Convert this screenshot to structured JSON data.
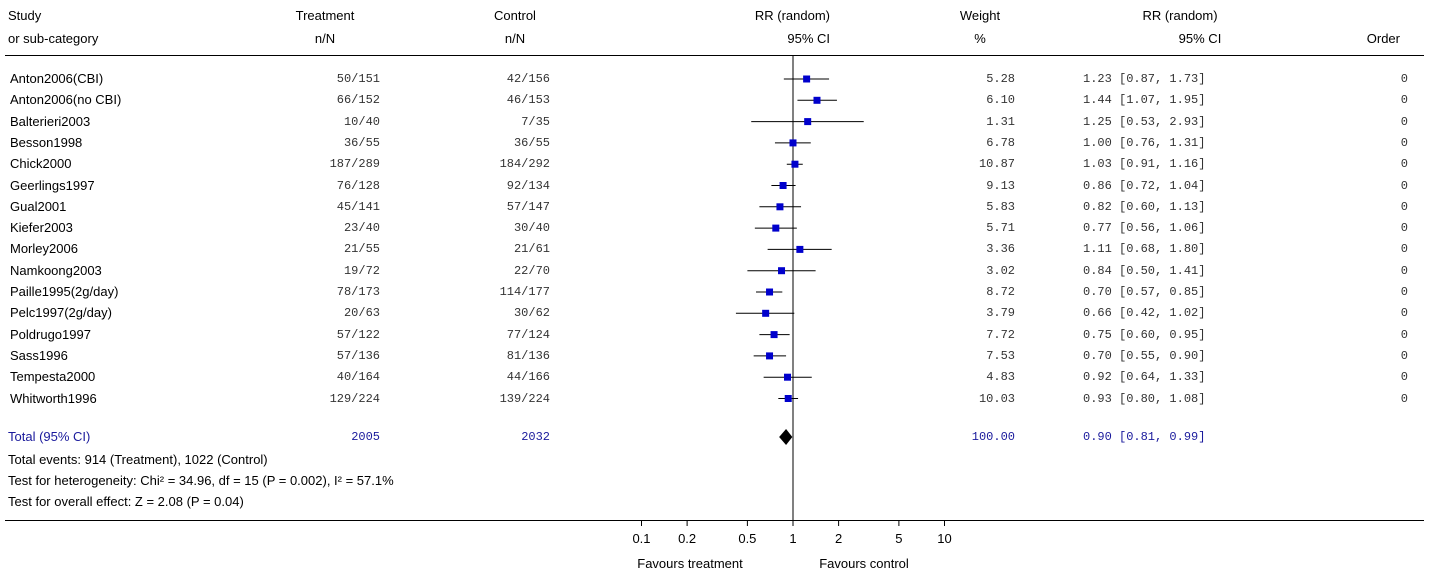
{
  "headers": {
    "study": [
      "Study",
      "or sub-category"
    ],
    "treatment": [
      "Treatment",
      "n/N"
    ],
    "control": [
      "Control",
      "n/N"
    ],
    "rr_plot": [
      "RR (random)",
      "95% CI"
    ],
    "weight": [
      "Weight",
      "%"
    ],
    "rr_text": [
      "RR (random)",
      "95% CI"
    ],
    "order": "Order"
  },
  "studies": [
    {
      "name": "Anton2006(CBI)",
      "treatment": "50/151",
      "control": "42/156",
      "weight": "5.28",
      "ci_text": "1.23 [0.87, 1.73]",
      "order": "0"
    },
    {
      "name": "Anton2006(no CBI)",
      "treatment": "66/152",
      "control": "46/153",
      "weight": "6.10",
      "ci_text": "1.44 [1.07, 1.95]",
      "order": "0"
    },
    {
      "name": "Balterieri2003",
      "treatment": "10/40",
      "control": "7/35",
      "weight": "1.31",
      "ci_text": "1.25 [0.53, 2.93]",
      "order": "0"
    },
    {
      "name": "Besson1998",
      "treatment": "36/55",
      "control": "36/55",
      "weight": "6.78",
      "ci_text": "1.00 [0.76, 1.31]",
      "order": "0"
    },
    {
      "name": "Chick2000",
      "treatment": "187/289",
      "control": "184/292",
      "weight": "10.87",
      "ci_text": "1.03 [0.91, 1.16]",
      "order": "0"
    },
    {
      "name": "Geerlings1997",
      "treatment": "76/128",
      "control": "92/134",
      "weight": "9.13",
      "ci_text": "0.86 [0.72, 1.04]",
      "order": "0"
    },
    {
      "name": "Gual2001",
      "treatment": "45/141",
      "control": "57/147",
      "weight": "5.83",
      "ci_text": "0.82 [0.60, 1.13]",
      "order": "0"
    },
    {
      "name": "Kiefer2003",
      "treatment": "23/40",
      "control": "30/40",
      "weight": "5.71",
      "ci_text": "0.77 [0.56, 1.06]",
      "order": "0"
    },
    {
      "name": "Morley2006",
      "treatment": "21/55",
      "control": "21/61",
      "weight": "3.36",
      "ci_text": "1.11 [0.68, 1.80]",
      "order": "0"
    },
    {
      "name": "Namkoong2003",
      "treatment": "19/72",
      "control": "22/70",
      "weight": "3.02",
      "ci_text": "0.84 [0.50, 1.41]",
      "order": "0"
    },
    {
      "name": "Paille1995(2g/day)",
      "treatment": "78/173",
      "control": "114/177",
      "weight": "8.72",
      "ci_text": "0.70 [0.57, 0.85]",
      "order": "0"
    },
    {
      "name": "Pelc1997(2g/day)",
      "treatment": "20/63",
      "control": "30/62",
      "weight": "3.79",
      "ci_text": "0.66 [0.42, 1.02]",
      "order": "0"
    },
    {
      "name": "Poldrugo1997",
      "treatment": "57/122",
      "control": "77/124",
      "weight": "7.72",
      "ci_text": "0.75 [0.60, 0.95]",
      "order": "0"
    },
    {
      "name": "Sass1996",
      "treatment": "57/136",
      "control": "81/136",
      "weight": "7.53",
      "ci_text": "0.70 [0.55, 0.90]",
      "order": "0"
    },
    {
      "name": "Tempesta2000",
      "treatment": "40/164",
      "control": "44/166",
      "weight": "4.83",
      "ci_text": "0.92 [0.64, 1.33]",
      "order": "0"
    },
    {
      "name": "Whitworth1996",
      "treatment": "129/224",
      "control": "139/224",
      "weight": "10.03",
      "ci_text": "0.93 [0.80, 1.08]",
      "order": "0"
    }
  ],
  "total": {
    "label": "Total (95% CI)",
    "treatment": "2005",
    "control": "2032",
    "weight": "100.00",
    "ci_text": "0.90 [0.81, 0.99]"
  },
  "footnotes": [
    "Total events: 914 (Treatment), 1022 (Control)",
    "Test for heterogeneity: Chi² = 34.96, df = 15 (P = 0.002), I² = 57.1%",
    "Test for overall effect: Z = 2.08 (P = 0.04)"
  ],
  "axis_labels": {
    "left": "Favours treatment",
    "right": "Favours control"
  },
  "colors": {
    "marker": "#0000cc",
    "total_text": "#1a1a9c",
    "diamond": "#000000"
  },
  "chart_data": {
    "type": "forest",
    "x_scale": "log",
    "xlim": [
      0.1,
      10
    ],
    "ticks": [
      0.1,
      0.2,
      0.5,
      1,
      2,
      5,
      10
    ],
    "tick_labels": [
      "0.1",
      "0.2",
      "0.5",
      "1",
      "2",
      "5",
      "10"
    ],
    "reference_line": 1,
    "studies": [
      {
        "name": "Anton2006(CBI)",
        "rr": 1.23,
        "lo": 0.87,
        "hi": 1.73,
        "weight": 5.28
      },
      {
        "name": "Anton2006(no CBI)",
        "rr": 1.44,
        "lo": 1.07,
        "hi": 1.95,
        "weight": 6.1
      },
      {
        "name": "Balterieri2003",
        "rr": 1.25,
        "lo": 0.53,
        "hi": 2.93,
        "weight": 1.31
      },
      {
        "name": "Besson1998",
        "rr": 1.0,
        "lo": 0.76,
        "hi": 1.31,
        "weight": 6.78
      },
      {
        "name": "Chick2000",
        "rr": 1.03,
        "lo": 0.91,
        "hi": 1.16,
        "weight": 10.87
      },
      {
        "name": "Geerlings1997",
        "rr": 0.86,
        "lo": 0.72,
        "hi": 1.04,
        "weight": 9.13
      },
      {
        "name": "Gual2001",
        "rr": 0.82,
        "lo": 0.6,
        "hi": 1.13,
        "weight": 5.83
      },
      {
        "name": "Kiefer2003",
        "rr": 0.77,
        "lo": 0.56,
        "hi": 1.06,
        "weight": 5.71
      },
      {
        "name": "Morley2006",
        "rr": 1.11,
        "lo": 0.68,
        "hi": 1.8,
        "weight": 3.36
      },
      {
        "name": "Namkoong2003",
        "rr": 0.84,
        "lo": 0.5,
        "hi": 1.41,
        "weight": 3.02
      },
      {
        "name": "Paille1995(2g/day)",
        "rr": 0.7,
        "lo": 0.57,
        "hi": 0.85,
        "weight": 8.72
      },
      {
        "name": "Pelc1997(2g/day)",
        "rr": 0.66,
        "lo": 0.42,
        "hi": 1.02,
        "weight": 3.79
      },
      {
        "name": "Poldrugo1997",
        "rr": 0.75,
        "lo": 0.6,
        "hi": 0.95,
        "weight": 7.72
      },
      {
        "name": "Sass1996",
        "rr": 0.7,
        "lo": 0.55,
        "hi": 0.9,
        "weight": 7.53
      },
      {
        "name": "Tempesta2000",
        "rr": 0.92,
        "lo": 0.64,
        "hi": 1.33,
        "weight": 4.83
      },
      {
        "name": "Whitworth1996",
        "rr": 0.93,
        "lo": 0.8,
        "hi": 1.08,
        "weight": 10.03
      }
    ],
    "pooled": {
      "rr": 0.9,
      "lo": 0.81,
      "hi": 0.99
    }
  }
}
